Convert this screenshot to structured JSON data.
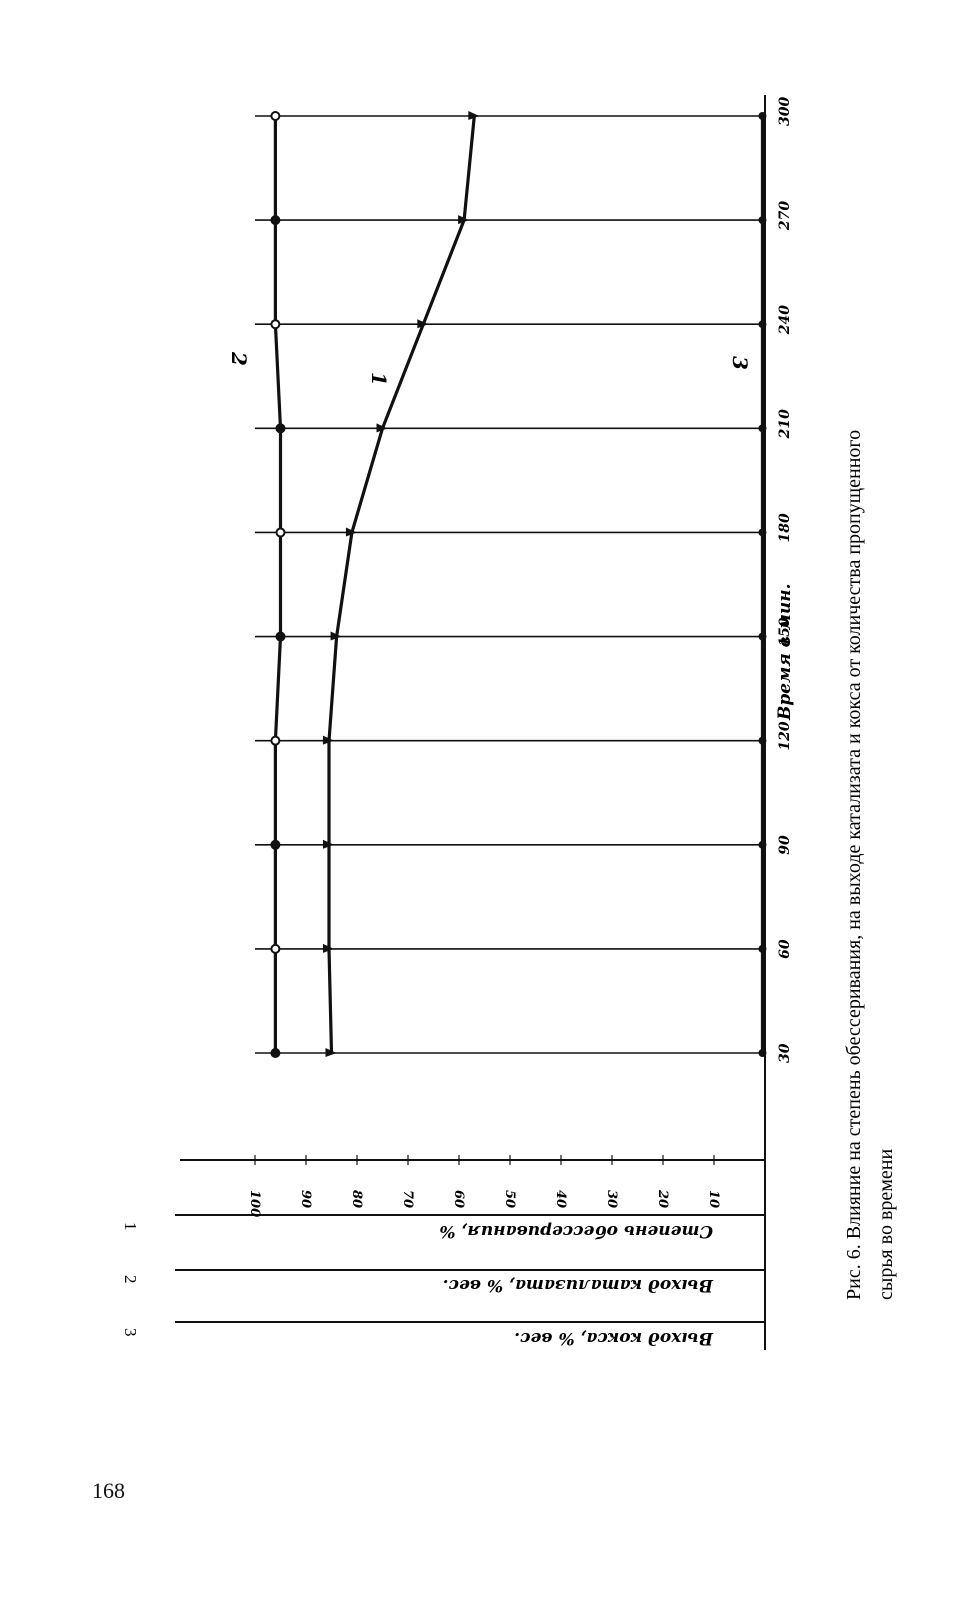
{
  "page": {
    "number": "168"
  },
  "caption": {
    "line1": "Рис. 6. Влияние на степень обессеривания, на выходе катализата и кокса от количества пропущенного",
    "line2": "сырья во времени"
  },
  "chart_data": {
    "type": "line",
    "x": [
      30,
      60,
      90,
      120,
      150,
      180,
      210,
      240,
      270,
      300
    ],
    "x_tick_labels": [
      "30",
      "60",
      "90",
      "120",
      "150",
      "180",
      "210",
      "240",
      "270",
      "300"
    ],
    "xlabel": "Время в мин.",
    "y_tick_labels": [
      "100",
      "90",
      "80",
      "70",
      "60",
      "50",
      "40",
      "30",
      "20",
      "10"
    ],
    "ylim": [
      0,
      100
    ],
    "grid": true,
    "axis_labels": [
      {
        "number": "1",
        "label": "Степень обессеривания, %"
      },
      {
        "number": "2",
        "label": "Выход катализата, % вес."
      },
      {
        "number": "3",
        "label": "Выход кокса, % вес."
      }
    ],
    "series": [
      {
        "name": "1",
        "values": [
          85,
          85.5,
          85.5,
          85.5,
          84,
          81,
          75,
          67,
          59,
          57
        ]
      },
      {
        "name": "2",
        "values": [
          96,
          96,
          96,
          96,
          95,
          95,
          95,
          96,
          96,
          96
        ]
      },
      {
        "name": "3",
        "values": [
          0.5,
          0.5,
          0.5,
          0.5,
          0.5,
          0.5,
          0.5,
          0.5,
          0.5,
          0.5
        ]
      }
    ]
  }
}
